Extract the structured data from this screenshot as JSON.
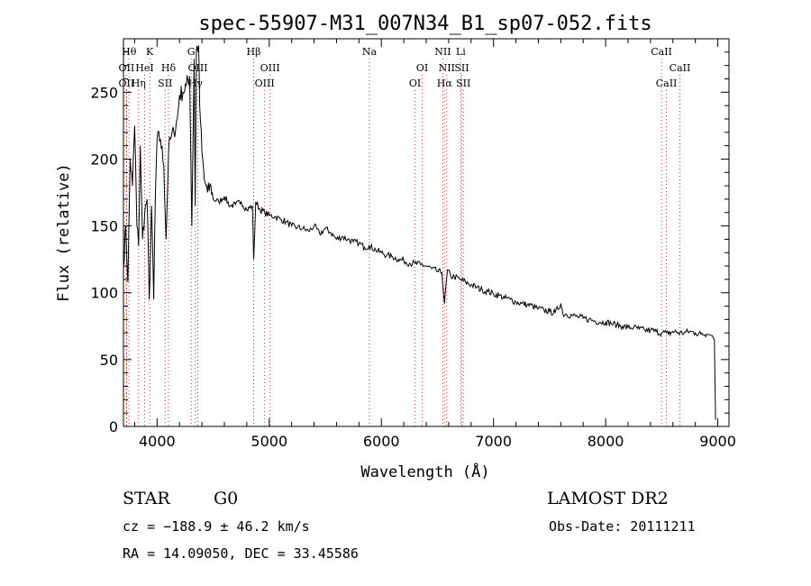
{
  "chart_data": {
    "type": "line",
    "title": "spec-55907-M31_007N34_B1_sp07-052.fits",
    "xlabel": "Wavelength (Å)",
    "ylabel": "Flux (relative)",
    "xlim": [
      3700,
      9100
    ],
    "ylim": [
      0,
      290
    ],
    "xticks": [
      4000,
      5000,
      6000,
      7000,
      8000,
      9000
    ],
    "yticks": [
      0,
      50,
      100,
      150,
      200,
      250
    ],
    "grid": false,
    "series": [
      {
        "x": [
          3700,
          3720,
          3740,
          3760,
          3780,
          3800,
          3820,
          3835,
          3850,
          3870,
          3890,
          3910,
          3930,
          3950,
          3970,
          3985,
          4000,
          4030,
          4060,
          4080,
          4102,
          4120,
          4150,
          4180,
          4200,
          4230,
          4260,
          4290,
          4310,
          4330,
          4340,
          4350,
          4370,
          4380,
          4400,
          4420,
          4450,
          4480,
          4500,
          4550,
          4600,
          4650,
          4700,
          4750,
          4800,
          4850,
          4861,
          4880,
          4920,
          4960,
          5000,
          5050,
          5100,
          5150,
          5200,
          5250,
          5300,
          5350,
          5400,
          5450,
          5500,
          5550,
          5600,
          5650,
          5700,
          5750,
          5800,
          5850,
          5890,
          5950,
          6000,
          6050,
          6100,
          6150,
          6200,
          6250,
          6300,
          6350,
          6400,
          6450,
          6500,
          6540,
          6563,
          6590,
          6620,
          6650,
          6700,
          6750,
          6800,
          6850,
          6900,
          6950,
          7000,
          7050,
          7100,
          7150,
          7200,
          7250,
          7300,
          7350,
          7400,
          7450,
          7500,
          7550,
          7600,
          7620,
          7650,
          7700,
          7750,
          7800,
          7850,
          7900,
          7950,
          8000,
          8050,
          8100,
          8150,
          8200,
          8250,
          8300,
          8350,
          8400,
          8450,
          8500,
          8542,
          8560,
          8600,
          8662,
          8700,
          8750,
          8800,
          8850,
          8900,
          8950,
          8960,
          8970,
          8980
        ],
        "y": [
          120,
          150,
          108,
          200,
          180,
          225,
          150,
          135,
          210,
          140,
          160,
          170,
          95,
          165,
          95,
          175,
          215,
          215,
          195,
          140,
          205,
          215,
          220,
          230,
          248,
          250,
          255,
          262,
          150,
          275,
          165,
          282,
          285,
          240,
          205,
          185,
          175,
          180,
          170,
          168,
          172,
          165,
          166,
          168,
          162,
          165,
          125,
          168,
          162,
          160,
          158,
          157,
          155,
          153,
          150,
          149,
          148,
          146,
          150,
          144,
          148,
          145,
          140,
          142,
          140,
          138,
          137,
          134,
          135,
          132,
          130,
          128,
          127,
          125,
          124,
          122,
          122,
          121,
          120,
          118,
          116,
          115,
          92,
          117,
          112,
          112,
          110,
          108,
          106,
          104,
          102,
          101,
          99,
          98,
          96,
          95,
          93,
          92,
          91,
          90,
          88,
          87,
          86,
          85,
          92,
          84,
          84,
          83,
          82,
          81,
          80,
          79,
          78,
          78,
          77,
          76,
          75,
          74,
          74,
          73,
          72,
          72,
          71,
          70,
          70,
          69,
          71,
          70,
          70,
          71,
          70,
          69,
          69,
          68,
          66,
          65,
          5
        ]
      }
    ],
    "lines": [
      {
        "x": 3750,
        "label": "Hθ",
        "row": 0
      },
      {
        "x": 3727,
        "label": "OII",
        "row": 1
      },
      {
        "x": 3727,
        "label": "OII",
        "row": 2
      },
      {
        "x": 3835,
        "label": "Hη",
        "row": 2
      },
      {
        "x": 3889,
        "label": "HeI",
        "row": 1
      },
      {
        "x": 3934,
        "label": "K",
        "row": 0
      },
      {
        "x": 4102,
        "label": "Hδ",
        "row": 1
      },
      {
        "x": 4072,
        "label": "SII",
        "row": 2
      },
      {
        "x": 4304,
        "label": "G",
        "row": 0
      },
      {
        "x": 4363,
        "label": "OIII",
        "row": 1
      },
      {
        "x": 4341,
        "label": "Hγ",
        "row": 2
      },
      {
        "x": 4861,
        "label": "Hβ",
        "row": 0
      },
      {
        "x": 5007,
        "label": "OIII",
        "row": 1
      },
      {
        "x": 4959,
        "label": "OIII",
        "row": 2
      },
      {
        "x": 5893,
        "label": "Na",
        "row": 0
      },
      {
        "x": 6364,
        "label": "OI",
        "row": 1
      },
      {
        "x": 6300,
        "label": "OI",
        "row": 2
      },
      {
        "x": 6548,
        "label": "NII",
        "row": 0
      },
      {
        "x": 6583,
        "label": "NII",
        "row": 1
      },
      {
        "x": 6563,
        "label": "Hα",
        "row": 2
      },
      {
        "x": 6708,
        "label": "Li",
        "row": 0
      },
      {
        "x": 6717,
        "label": "SII",
        "row": 1
      },
      {
        "x": 6731,
        "label": "SII",
        "row": 2
      },
      {
        "x": 8498,
        "label": "CaII",
        "row": 0
      },
      {
        "x": 8662,
        "label": "CaII",
        "row": 1
      },
      {
        "x": 8542,
        "label": "CaII",
        "row": 2
      }
    ]
  },
  "info": {
    "class": "STAR",
    "subclass": "G0",
    "survey": "LAMOST DR2",
    "cz": "cz = −188.9 ± 46.2 km/s",
    "obs_date": "Obs-Date: 20111211",
    "radec": "RA =  14.09050, DEC =  33.45586"
  }
}
